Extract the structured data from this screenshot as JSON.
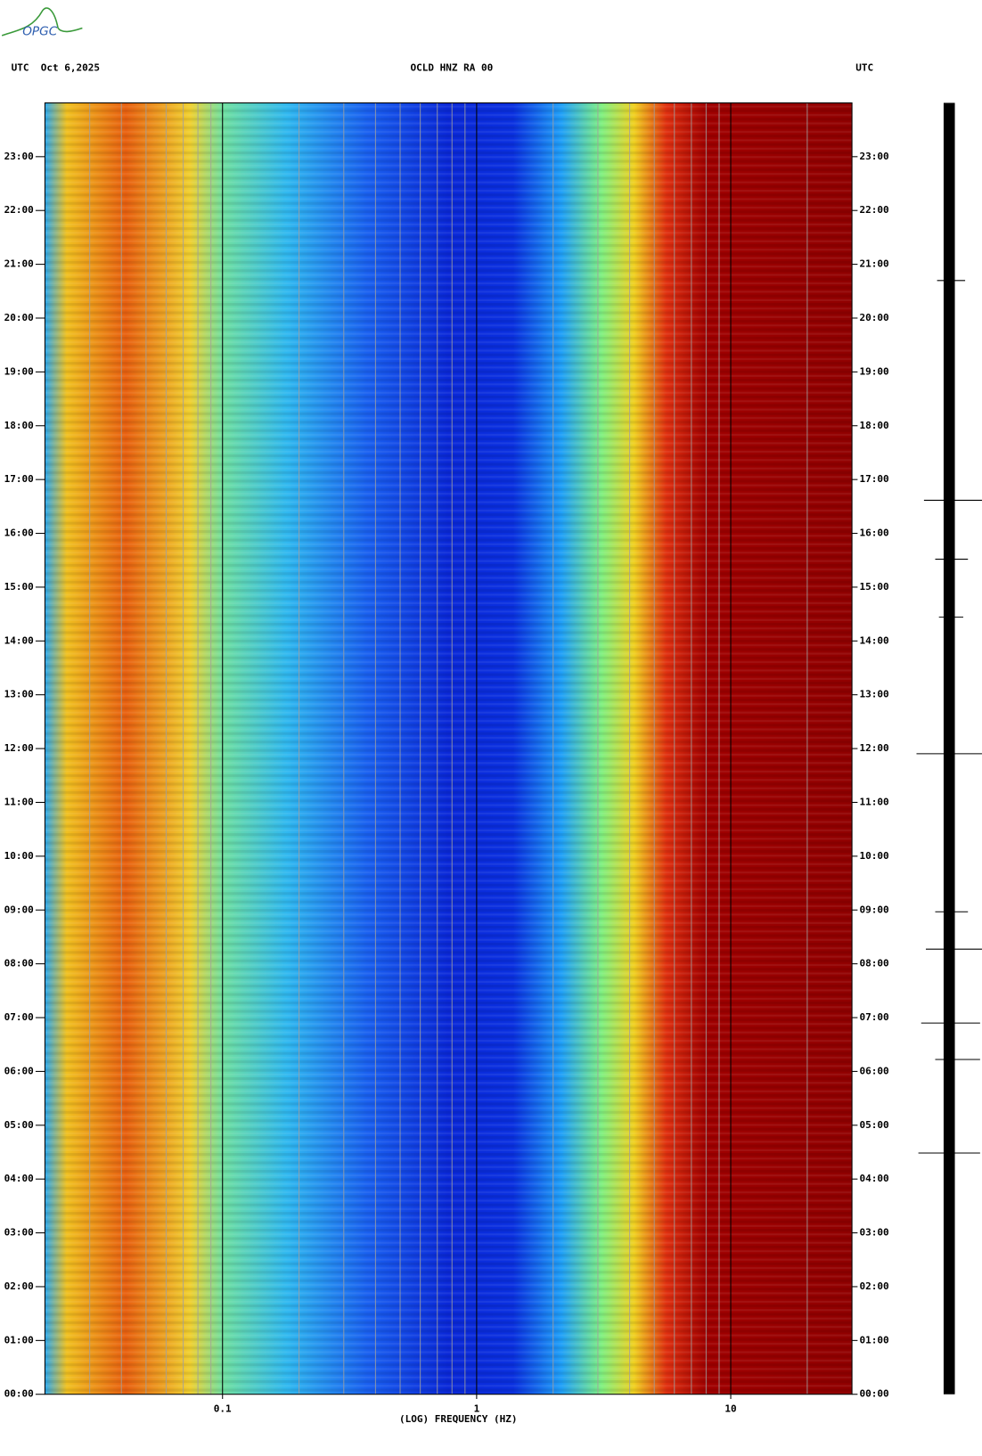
{
  "chart_data": {
    "type": "spectrogram",
    "logo": "OPGC",
    "date_label": "UTC  Oct 6,2025",
    "title": "OCLD HNZ RA 00",
    "right_label": "UTC",
    "xlabel": "(LOG) FREQUENCY (HZ)",
    "xscale": "log",
    "xlim": [
      0.02,
      30
    ],
    "xticks": [
      0.1,
      1,
      10
    ],
    "xminorticks": [
      0.03,
      0.04,
      0.05,
      0.06,
      0.07,
      0.08,
      0.09,
      0.2,
      0.3,
      0.4,
      0.5,
      0.6,
      0.7,
      0.8,
      0.9,
      2,
      3,
      4,
      5,
      6,
      7,
      8,
      9,
      20
    ],
    "ylim": [
      0,
      24
    ],
    "yticks": [
      {
        "value": 0,
        "label": "00:00"
      },
      {
        "value": 1,
        "label": "01:00"
      },
      {
        "value": 2,
        "label": "02:00"
      },
      {
        "value": 3,
        "label": "03:00"
      },
      {
        "value": 4,
        "label": "04:00"
      },
      {
        "value": 5,
        "label": "05:00"
      },
      {
        "value": 6,
        "label": "06:00"
      },
      {
        "value": 7,
        "label": "07:00"
      },
      {
        "value": 8,
        "label": "08:00"
      },
      {
        "value": 9,
        "label": "09:00"
      },
      {
        "value": 10,
        "label": "10:00"
      },
      {
        "value": 11,
        "label": "11:00"
      },
      {
        "value": 12,
        "label": "12:00"
      },
      {
        "value": 13,
        "label": "13:00"
      },
      {
        "value": 14,
        "label": "14:00"
      },
      {
        "value": 15,
        "label": "15:00"
      },
      {
        "value": 16,
        "label": "16:00"
      },
      {
        "value": 17,
        "label": "17:00"
      },
      {
        "value": 18,
        "label": "18:00"
      },
      {
        "value": 19,
        "label": "19:00"
      },
      {
        "value": 20,
        "label": "20:00"
      },
      {
        "value": 21,
        "label": "21:00"
      },
      {
        "value": 22,
        "label": "22:00"
      },
      {
        "value": 23,
        "label": "23:00"
      }
    ]
  }
}
